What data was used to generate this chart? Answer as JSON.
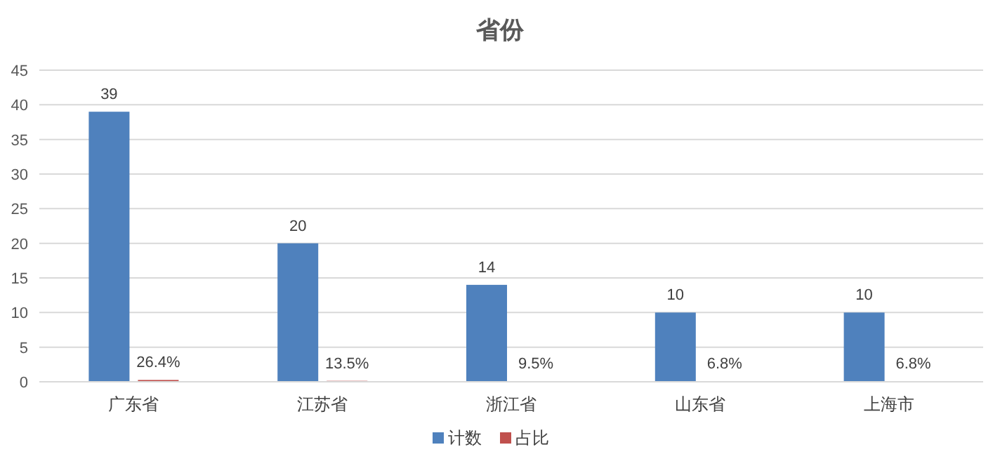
{
  "chart_data": {
    "type": "bar",
    "title": "省份",
    "categories": [
      "广东省",
      "江苏省",
      "浙江省",
      "山东省",
      "上海市"
    ],
    "series": [
      {
        "name": "计数",
        "color": "#4f81bd",
        "values": [
          39,
          20,
          14,
          10,
          10
        ],
        "value_labels": [
          "39",
          "20",
          "14",
          "10",
          "10"
        ]
      },
      {
        "name": "占比",
        "color": "#c0504d",
        "values": [
          0.264,
          0.135,
          0.095,
          0.068,
          0.068
        ],
        "value_labels": [
          "26.4%",
          "13.5%",
          "9.5%",
          "6.8%",
          "6.8%"
        ]
      }
    ],
    "ylim": [
      0,
      45
    ],
    "yticks": [
      0,
      5,
      10,
      15,
      20,
      25,
      30,
      35,
      40,
      45
    ],
    "grid": "y",
    "legend": "bottom"
  }
}
